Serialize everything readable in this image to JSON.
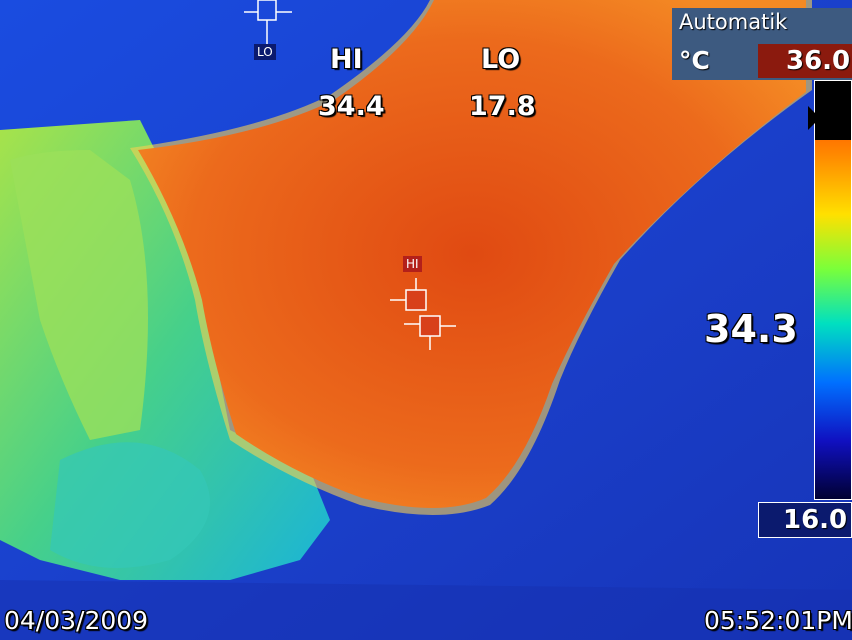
{
  "spot_labels": {
    "hi": "HI",
    "lo": "LO"
  },
  "spot_values": {
    "hi": "34.4",
    "lo": "17.8"
  },
  "center_temperature": "34.3",
  "range_mode": "Automatik",
  "unit": "°C",
  "scale": {
    "max": "36.0",
    "min": "16.0"
  },
  "markers": {
    "lo_tag": "LO",
    "hi_tag": "HI"
  },
  "footer": {
    "date": "04/03/2009",
    "time": "05:52:01PM"
  },
  "colors": {
    "background_cold": "#1a3fd0",
    "hot_region": "#e8581a",
    "mid_region": "#3fc8a0",
    "max_box": "#8b1a0e",
    "min_box": "#0b1a6e",
    "panel": "#3d5a80"
  }
}
